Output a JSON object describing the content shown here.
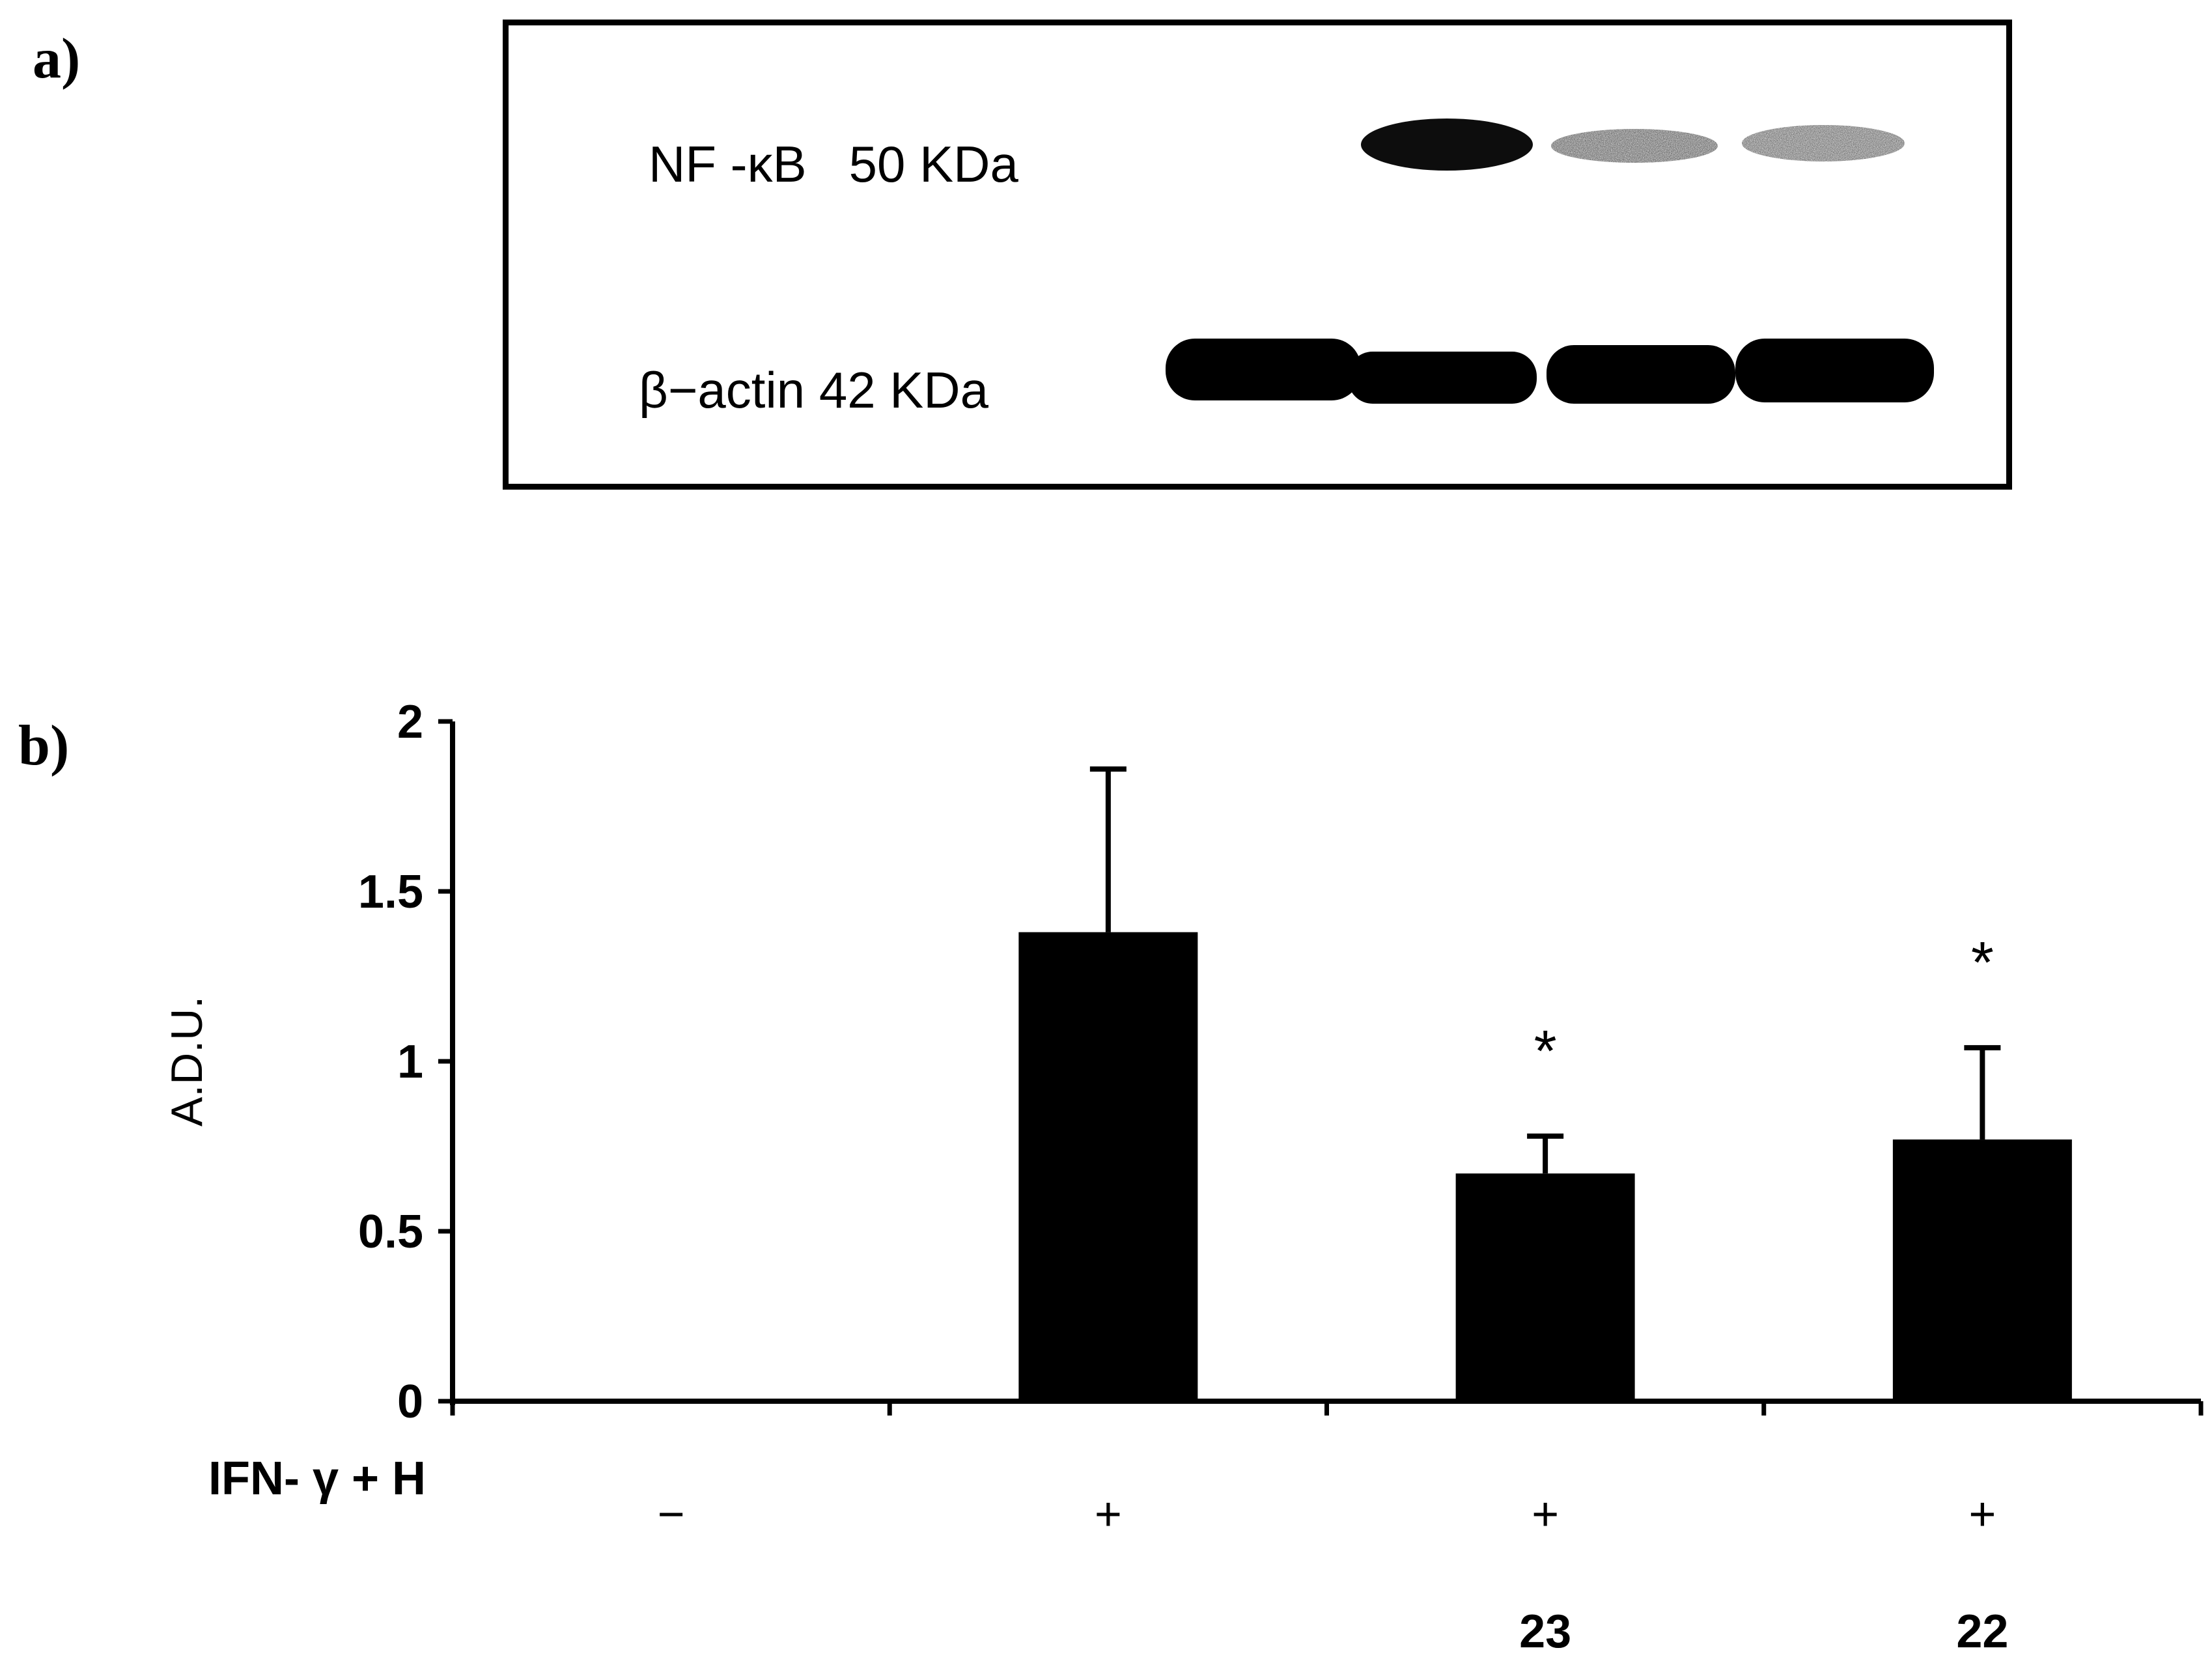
{
  "panel_a": {
    "label": "a)",
    "bands": [
      {
        "name": "NF -κB   50 KDa"
      },
      {
        "name": "β−actin 42 KDa"
      }
    ]
  },
  "panel_b": {
    "label": "b)",
    "row_label": "IFN- γ + H",
    "treatment_signs": [
      "−",
      "+",
      "+",
      "+"
    ],
    "compound_labels": [
      "",
      "",
      "23",
      "22"
    ],
    "significance": [
      "",
      "",
      "*",
      "*"
    ]
  },
  "chart_data": {
    "type": "bar",
    "categories": [
      "1",
      "2",
      "3",
      "4"
    ],
    "values": [
      0,
      1.38,
      0.67,
      0.77
    ],
    "errors": [
      0,
      0.48,
      0.11,
      0.27
    ],
    "xlabel": "",
    "ylabel": "A.D.U.",
    "ylim": [
      0,
      2
    ],
    "yticks": [
      "0",
      "0.5",
      "1",
      "1.5",
      "2"
    ],
    "bar_color": "#000000",
    "grid": false
  }
}
